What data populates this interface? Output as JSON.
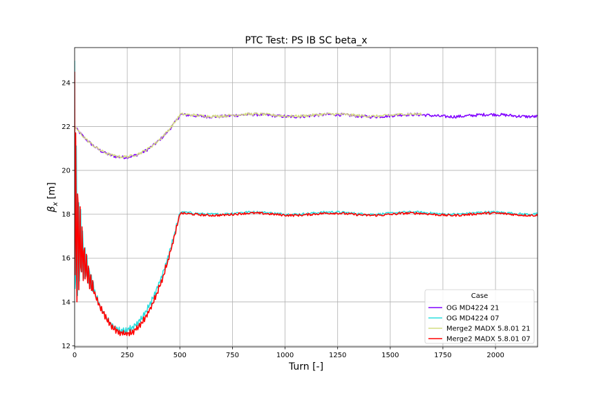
{
  "chart_data": {
    "type": "line",
    "title": "PTC Test: PS IB SC beta_x",
    "xlabel": "Turn [-]",
    "ylabel": "β",
    "ylabel_subscript": "x",
    "ylabel_unit": "[m]",
    "xlim": [
      0,
      2200
    ],
    "ylim": [
      11.95,
      25.6
    ],
    "xticks": [
      0,
      250,
      500,
      750,
      1000,
      1250,
      1500,
      1750,
      2000
    ],
    "yticks": [
      12,
      14,
      16,
      18,
      20,
      22,
      24
    ],
    "grid": true,
    "legend": {
      "title": "Case",
      "placement": "lower-right"
    },
    "series": [
      {
        "name": "OG MD4224 21",
        "color": "#8000ff",
        "x_range": [
          0,
          2200
        ],
        "start_value": 22.0,
        "min_turn": 230,
        "min_value": 20.6,
        "plateau_turn": 500,
        "plateau_value": 22.5,
        "noise": 0.07
      },
      {
        "name": "OG MD4224 07",
        "color": "#2adddd",
        "x_range": [
          0,
          2200
        ],
        "initial_spike": 25.0,
        "start_value": 17.8,
        "min_turn": 230,
        "min_value": 12.68,
        "plateau_turn": 500,
        "plateau_value": 18.05,
        "noise": 0.05
      },
      {
        "name": "Merge2 MADX 5.8.01 21",
        "color": "#d4dd80",
        "x_range": [
          0,
          1650
        ],
        "start_value": 22.0,
        "min_turn": 230,
        "min_value": 20.62,
        "plateau_turn": 500,
        "plateau_value": 22.52,
        "noise": 0.06
      },
      {
        "name": "Merge2 MADX 5.8.01 07",
        "color": "#ff0000",
        "x_range": [
          0,
          2200
        ],
        "initial_spike": 24.5,
        "start_value": 17.6,
        "min_turn": 240,
        "min_value": 12.55,
        "plateau_turn": 500,
        "plateau_value": 18.0,
        "noise": 0.05
      }
    ]
  }
}
